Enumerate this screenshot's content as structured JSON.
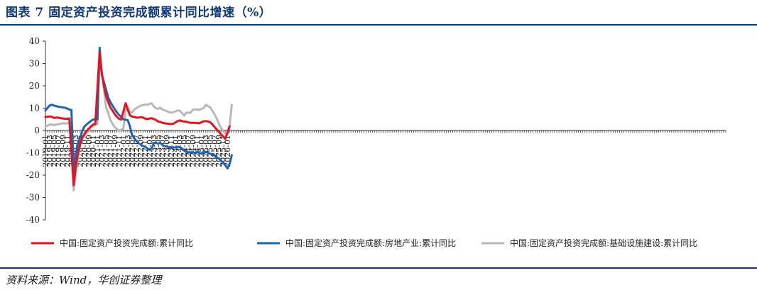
{
  "figure": {
    "title": "图表 7   固定资产投资完成额累计同比增速（%）",
    "source": "资料来源：Wind，华创证券整理"
  },
  "colors": {
    "rule": "#123a7a",
    "title": "#123a7a",
    "axis": "#333333"
  },
  "chart_data": {
    "type": "line",
    "title": "",
    "xlabel": "",
    "ylabel": "",
    "ylim": [
      -40,
      40
    ],
    "yticks": [
      -40,
      -30,
      -20,
      -10,
      0,
      10,
      20,
      30,
      40
    ],
    "xtick_labels": [
      "2019-01",
      "2019-03",
      "2019-05",
      "2019-07",
      "2019-09",
      "2019-11",
      "2020-01",
      "2020-03",
      "2020-05",
      "2020-07",
      "2020-09",
      "2020-11",
      "2021-01",
      "2021-03",
      "2021-05",
      "2021-07",
      "2021-09",
      "2021-11",
      "2022-01",
      "2022-03",
      "2022-05",
      "2022-07",
      "2022-09",
      "2022-11",
      "2023-01",
      "2023-03",
      "2023-05",
      "2023-07",
      "2023-09",
      "2023-11",
      "2024-01",
      "2024-03",
      "2024-05",
      "2024-07",
      "2024-09",
      "2024-11",
      "2025-01",
      "2025-03",
      "2025-05",
      "2025-07",
      "2025-09",
      "2025-11",
      "2026-01"
    ],
    "grid": false,
    "legend_position": "bottom",
    "series": [
      {
        "name": "中国:固定资产投资完成额:累计同比",
        "color": "#e5131d",
        "points": [
          [
            "2019-01",
            6.0
          ],
          [
            "2019-03",
            6.3
          ],
          [
            "2019-04",
            6.1
          ],
          [
            "2019-05",
            5.6
          ],
          [
            "2019-06",
            5.8
          ],
          [
            "2019-07",
            5.7
          ],
          [
            "2019-08",
            5.5
          ],
          [
            "2019-09",
            5.4
          ],
          [
            "2019-10",
            5.2
          ],
          [
            "2019-11",
            5.2
          ],
          [
            "2019-12",
            5.4
          ],
          [
            "2020-02",
            -24.5
          ],
          [
            "2020-03",
            -16.1
          ],
          [
            "2020-04",
            -10.3
          ],
          [
            "2020-05",
            -6.3
          ],
          [
            "2020-06",
            -3.1
          ],
          [
            "2020-07",
            -1.6
          ],
          [
            "2020-08",
            -0.3
          ],
          [
            "2020-09",
            0.8
          ],
          [
            "2020-10",
            1.8
          ],
          [
            "2020-11",
            2.6
          ],
          [
            "2020-12",
            2.9
          ],
          [
            "2021-02",
            35.0
          ],
          [
            "2021-03",
            25.6
          ],
          [
            "2021-04",
            19.9
          ],
          [
            "2021-05",
            15.4
          ],
          [
            "2021-06",
            12.6
          ],
          [
            "2021-07",
            10.3
          ],
          [
            "2021-08",
            8.9
          ],
          [
            "2021-09",
            7.3
          ],
          [
            "2021-10",
            6.1
          ],
          [
            "2021-11",
            5.2
          ],
          [
            "2021-12",
            4.9
          ],
          [
            "2022-02",
            12.2
          ],
          [
            "2022-03",
            9.3
          ],
          [
            "2022-04",
            6.8
          ],
          [
            "2022-05",
            6.2
          ],
          [
            "2022-06",
            6.1
          ],
          [
            "2022-07",
            5.7
          ],
          [
            "2022-08",
            5.8
          ],
          [
            "2022-09",
            5.9
          ],
          [
            "2022-10",
            5.8
          ],
          [
            "2022-11",
            5.3
          ],
          [
            "2022-12",
            5.1
          ],
          [
            "2023-02",
            5.5
          ],
          [
            "2023-03",
            5.1
          ],
          [
            "2023-04",
            4.7
          ],
          [
            "2023-05",
            4.0
          ],
          [
            "2023-06",
            3.8
          ],
          [
            "2023-07",
            3.4
          ],
          [
            "2023-08",
            3.2
          ],
          [
            "2023-09",
            3.1
          ],
          [
            "2023-10",
            2.9
          ],
          [
            "2023-11",
            2.9
          ],
          [
            "2023-12",
            3.0
          ],
          [
            "2024-02",
            4.2
          ],
          [
            "2024-03",
            4.5
          ],
          [
            "2024-04",
            4.2
          ],
          [
            "2024-05",
            4.0
          ],
          [
            "2024-06",
            3.9
          ],
          [
            "2024-07",
            3.6
          ],
          [
            "2024-08",
            3.4
          ],
          [
            "2024-09",
            3.4
          ],
          [
            "2024-10",
            3.4
          ],
          [
            "2024-11",
            3.3
          ],
          [
            "2024-12",
            3.2
          ],
          [
            "2025-02",
            4.1
          ],
          [
            "2025-03",
            4.2
          ],
          [
            "2025-04",
            4.0
          ],
          [
            "2025-05",
            3.7
          ],
          [
            "2025-06",
            2.8
          ],
          [
            "2025-07",
            1.6
          ],
          [
            "2025-08",
            0.5
          ],
          [
            "2025-09",
            -0.5
          ],
          [
            "2025-10",
            -1.7
          ],
          [
            "2025-11",
            -2.6
          ],
          [
            "2025-12",
            -3.8
          ],
          [
            "2026-02",
            1.8
          ]
        ]
      },
      {
        "name": "中国:固定资产投资完成额:房地产业:累计同比",
        "color": "#1f64b4",
        "points": [
          [
            "2019-01",
            9.0
          ],
          [
            "2019-02",
            10.2
          ],
          [
            "2019-03",
            11.2
          ],
          [
            "2019-04",
            11.5
          ],
          [
            "2019-05",
            11.1
          ],
          [
            "2019-06",
            10.9
          ],
          [
            "2019-07",
            10.6
          ],
          [
            "2019-08",
            10.5
          ],
          [
            "2019-09",
            10.3
          ],
          [
            "2019-10",
            10.2
          ],
          [
            "2019-11",
            9.8
          ],
          [
            "2019-12",
            9.4
          ],
          [
            "2020-01",
            9.1
          ],
          [
            "2020-02",
            -18.2
          ],
          [
            "2020-03",
            -10.4
          ],
          [
            "2020-04",
            -6.0
          ],
          [
            "2020-05",
            -3.2
          ],
          [
            "2020-06",
            -0.2
          ],
          [
            "2020-07",
            1.7
          ],
          [
            "2020-08",
            2.7
          ],
          [
            "2020-09",
            3.5
          ],
          [
            "2020-10",
            4.3
          ],
          [
            "2020-11",
            4.9
          ],
          [
            "2020-12",
            5.0
          ],
          [
            "2021-01",
            5.0
          ],
          [
            "2021-02",
            37.0
          ],
          [
            "2021-03",
            25.0
          ],
          [
            "2021-04",
            21.6
          ],
          [
            "2021-05",
            18.3
          ],
          [
            "2021-06",
            14.7
          ],
          [
            "2021-07",
            12.7
          ],
          [
            "2021-08",
            11.0
          ],
          [
            "2021-09",
            9.6
          ],
          [
            "2021-10",
            8.0
          ],
          [
            "2021-11",
            6.9
          ],
          [
            "2021-12",
            6.0
          ],
          [
            "2022-01",
            5.0
          ],
          [
            "2022-02",
            4.8
          ],
          [
            "2022-03",
            4.6
          ],
          [
            "2022-04",
            1.8
          ],
          [
            "2022-05",
            -2.0
          ],
          [
            "2022-06",
            -3.5
          ],
          [
            "2022-07",
            -4.7
          ],
          [
            "2022-08",
            -5.7
          ],
          [
            "2022-09",
            -6.3
          ],
          [
            "2022-10",
            -7.0
          ],
          [
            "2022-11",
            -7.3
          ],
          [
            "2022-12",
            -8.0
          ],
          [
            "2023-01",
            -8.7
          ],
          [
            "2023-02",
            -8.2
          ],
          [
            "2023-03",
            -5.6
          ],
          [
            "2023-04",
            -5.5
          ],
          [
            "2023-05",
            -5.9
          ],
          [
            "2023-06",
            -5.5
          ],
          [
            "2023-07",
            -6.5
          ],
          [
            "2023-08",
            -7.0
          ],
          [
            "2023-09",
            -7.2
          ],
          [
            "2023-10",
            -7.4
          ],
          [
            "2023-11",
            -7.6
          ],
          [
            "2023-12",
            -7.6
          ],
          [
            "2024-01",
            -7.6
          ],
          [
            "2024-02",
            -7.3
          ],
          [
            "2024-03",
            -7.5
          ],
          [
            "2024-04",
            -8.0
          ],
          [
            "2024-05",
            -9.0
          ],
          [
            "2024-06",
            -9.6
          ],
          [
            "2024-07",
            -9.9
          ],
          [
            "2024-08",
            -9.8
          ],
          [
            "2024-09",
            -9.8
          ],
          [
            "2024-10",
            -10.0
          ],
          [
            "2024-11",
            -9.6
          ],
          [
            "2024-12",
            -10.1
          ],
          [
            "2025-01",
            -10.3
          ],
          [
            "2025-02",
            -9.8
          ],
          [
            "2025-03",
            -9.6
          ],
          [
            "2025-04",
            -10.0
          ],
          [
            "2025-05",
            -10.4
          ],
          [
            "2025-06",
            -10.7
          ],
          [
            "2025-07",
            -11.2
          ],
          [
            "2025-08",
            -12.0
          ],
          [
            "2025-09",
            -12.5
          ],
          [
            "2025-10",
            -13.6
          ],
          [
            "2025-11",
            -14.3
          ],
          [
            "2025-12",
            -15.5
          ],
          [
            "2026-01",
            -17.0
          ],
          [
            "2026-02",
            -15.0
          ],
          [
            "2026-03",
            -11.0
          ]
        ]
      },
      {
        "name": "中国:固定资产投资完成额:基础设施建设:累计同比",
        "color": "#b8b8b8",
        "points": [
          [
            "2019-01",
            1.8
          ],
          [
            "2019-02",
            2.2
          ],
          [
            "2019-03",
            2.7
          ],
          [
            "2019-04",
            2.6
          ],
          [
            "2019-05",
            2.4
          ],
          [
            "2019-06",
            2.7
          ],
          [
            "2019-07",
            2.8
          ],
          [
            "2019-08",
            3.0
          ],
          [
            "2019-09",
            3.3
          ],
          [
            "2019-10",
            3.1
          ],
          [
            "2019-11",
            3.2
          ],
          [
            "2019-12",
            3.5
          ],
          [
            "2020-01",
            2.9
          ],
          [
            "2020-02",
            -26.8
          ],
          [
            "2020-03",
            -19.5
          ],
          [
            "2020-04",
            -11.8
          ],
          [
            "2020-05",
            -6.3
          ],
          [
            "2020-06",
            -3.4
          ],
          [
            "2020-07",
            -2.7
          ],
          [
            "2020-08",
            -1.0
          ],
          [
            "2020-09",
            0.2
          ],
          [
            "2020-10",
            1.5
          ],
          [
            "2020-11",
            2.2
          ],
          [
            "2020-12",
            2.5
          ],
          [
            "2021-01",
            3.0
          ],
          [
            "2021-02",
            35.0
          ],
          [
            "2021-03",
            26.8
          ],
          [
            "2021-04",
            18.4
          ],
          [
            "2021-05",
            10.3
          ],
          [
            "2021-06",
            7.8
          ],
          [
            "2021-07",
            4.6
          ],
          [
            "2021-08",
            2.9
          ],
          [
            "2021-09",
            1.5
          ],
          [
            "2021-10",
            0.7
          ],
          [
            "2021-11",
            -0.3
          ],
          [
            "2021-12",
            0.4
          ],
          [
            "2022-01",
            0.9
          ],
          [
            "2022-02",
            8.6
          ],
          [
            "2022-03",
            10.5
          ],
          [
            "2022-04",
            8.3
          ],
          [
            "2022-05",
            8.0
          ],
          [
            "2022-06",
            9.3
          ],
          [
            "2022-07",
            10.0
          ],
          [
            "2022-08",
            10.6
          ],
          [
            "2022-09",
            11.1
          ],
          [
            "2022-10",
            11.3
          ],
          [
            "2022-11",
            11.7
          ],
          [
            "2022-12",
            11.5
          ],
          [
            "2023-01",
            11.8
          ],
          [
            "2023-02",
            12.2
          ],
          [
            "2023-03",
            10.8
          ],
          [
            "2023-04",
            9.9
          ],
          [
            "2023-05",
            9.7
          ],
          [
            "2023-06",
            10.2
          ],
          [
            "2023-07",
            9.3
          ],
          [
            "2023-08",
            9.1
          ],
          [
            "2023-09",
            8.6
          ],
          [
            "2023-10",
            8.3
          ],
          [
            "2023-11",
            7.9
          ],
          [
            "2023-12",
            8.2
          ],
          [
            "2024-01",
            8.5
          ],
          [
            "2024-02",
            9.0
          ],
          [
            "2024-03",
            8.8
          ],
          [
            "2024-04",
            7.8
          ],
          [
            "2024-05",
            6.7
          ],
          [
            "2024-06",
            7.9
          ],
          [
            "2024-07",
            8.0
          ],
          [
            "2024-08",
            7.9
          ],
          [
            "2024-09",
            9.3
          ],
          [
            "2024-10",
            9.4
          ],
          [
            "2024-11",
            9.4
          ],
          [
            "2024-12",
            9.2
          ],
          [
            "2025-01",
            9.7
          ],
          [
            "2025-02",
            10.0
          ],
          [
            "2025-03",
            11.5
          ],
          [
            "2025-04",
            10.9
          ],
          [
            "2025-05",
            10.4
          ],
          [
            "2025-06",
            8.9
          ],
          [
            "2025-07",
            7.3
          ],
          [
            "2025-08",
            5.4
          ],
          [
            "2025-09",
            3.2
          ],
          [
            "2025-10",
            1.2
          ],
          [
            "2025-11",
            -0.1
          ],
          [
            "2025-12",
            -1.2
          ],
          [
            "2026-01",
            -1.5
          ],
          [
            "2026-02",
            2.0
          ],
          [
            "2026-03",
            11.5
          ]
        ]
      }
    ]
  }
}
